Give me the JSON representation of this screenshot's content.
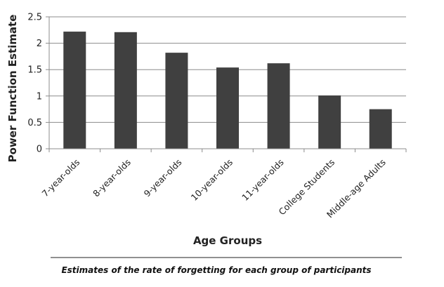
{
  "chart_data": {
    "type": "bar",
    "categories": [
      "7-year-olds",
      "8-year-olds",
      "9-year-olds",
      "10-year-olds",
      "11-year-olds",
      "College Students",
      "Middle-age Adults"
    ],
    "values": [
      2.22,
      2.21,
      1.82,
      1.54,
      1.62,
      1.01,
      0.75
    ],
    "xlabel": "Age Groups",
    "ylabel": "Power Function Estimate",
    "ylim": [
      0,
      2.5
    ],
    "yticks": [
      "0",
      "0.5",
      "1",
      "1.5",
      "2",
      "2.5"
    ],
    "grid": true,
    "legend": "none",
    "bar_color": "#404040",
    "caption": "Estimates of the rate of forgetting for each group of participants"
  }
}
